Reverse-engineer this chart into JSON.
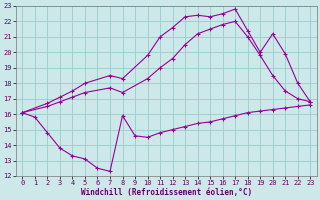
{
  "xlabel": "Windchill (Refroidissement éolien,°C)",
  "background_color": "#cce8e8",
  "grid_color": "#99cccc",
  "line_color": "#990099",
  "xlim": [
    -0.5,
    23.5
  ],
  "ylim": [
    12,
    23
  ],
  "xticks": [
    0,
    1,
    2,
    3,
    4,
    5,
    6,
    7,
    8,
    9,
    10,
    11,
    12,
    13,
    14,
    15,
    16,
    17,
    18,
    19,
    20,
    21,
    22,
    23
  ],
  "yticks": [
    12,
    13,
    14,
    15,
    16,
    17,
    18,
    19,
    20,
    21,
    22,
    23
  ],
  "line1_x": [
    0,
    1,
    2,
    3,
    4,
    5,
    6,
    7,
    8,
    9,
    10,
    11,
    12,
    13,
    14,
    15,
    16,
    17,
    18,
    19,
    20,
    21,
    22,
    23
  ],
  "line1_y": [
    16.1,
    15.8,
    14.8,
    13.8,
    13.3,
    13.1,
    12.5,
    12.3,
    15.9,
    14.6,
    14.5,
    14.8,
    15.0,
    15.2,
    15.4,
    15.5,
    15.7,
    15.9,
    16.1,
    16.2,
    16.3,
    16.4,
    16.5,
    16.6
  ],
  "line2_x": [
    0,
    2,
    3,
    4,
    5,
    7,
    8,
    10,
    11,
    12,
    13,
    14,
    15,
    16,
    17,
    18,
    19,
    20,
    21,
    22,
    23
  ],
  "line2_y": [
    16.1,
    16.7,
    17.1,
    17.5,
    18.0,
    18.5,
    18.3,
    19.8,
    21.0,
    21.6,
    22.3,
    22.4,
    22.3,
    22.5,
    22.8,
    21.4,
    20.0,
    21.2,
    19.9,
    18.0,
    16.8
  ],
  "line3_x": [
    0,
    2,
    3,
    4,
    5,
    7,
    8,
    10,
    11,
    12,
    13,
    14,
    15,
    16,
    17,
    18,
    19,
    20,
    21,
    22,
    23
  ],
  "line3_y": [
    16.1,
    16.5,
    16.8,
    17.1,
    17.4,
    17.7,
    17.4,
    18.3,
    19.0,
    19.6,
    20.5,
    21.2,
    21.5,
    21.8,
    22.0,
    21.0,
    19.8,
    18.5,
    17.5,
    17.0,
    16.8
  ]
}
